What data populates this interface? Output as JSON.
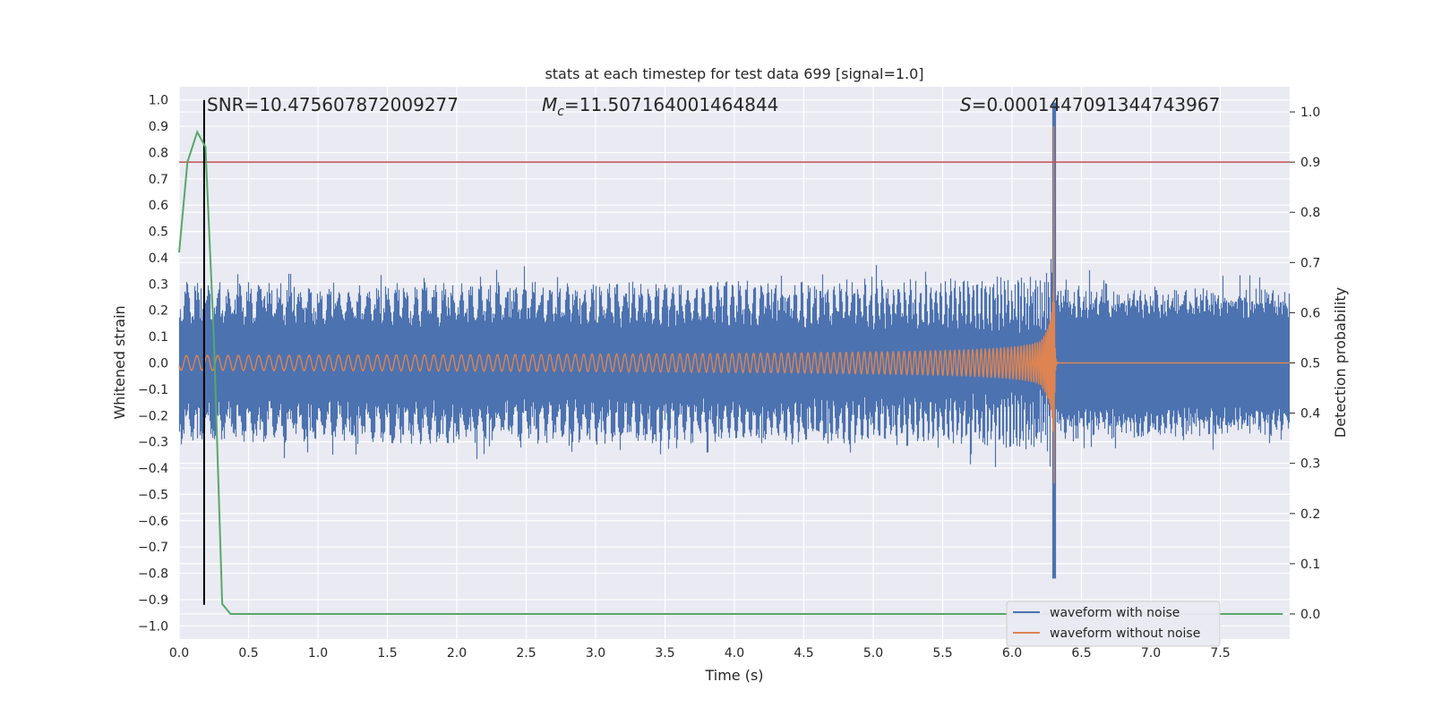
{
  "chart_data": {
    "type": "line",
    "title": "stats at each timestep for test data 699 [signal=1.0]",
    "xlabel": "Time (s)",
    "ylabel": "Whitened strain",
    "ylabel_right": "Detection probability",
    "xlim": [
      0.0,
      8.0
    ],
    "ylim": [
      -1.05,
      1.05
    ],
    "ylim_right": [
      -0.05,
      1.05
    ],
    "xticks": [
      "0.0",
      "0.5",
      "1.0",
      "1.5",
      "2.0",
      "2.5",
      "3.0",
      "3.5",
      "4.0",
      "4.5",
      "5.0",
      "5.5",
      "6.0",
      "6.5",
      "7.0",
      "7.5"
    ],
    "yticks": [
      "1.0",
      "0.9",
      "0.8",
      "0.7",
      "0.6",
      "0.5",
      "0.4",
      "0.3",
      "0.2",
      "0.1",
      "0.0",
      "−0.1",
      "−0.2",
      "−0.3",
      "−0.4",
      "−0.5",
      "−0.6",
      "−0.7",
      "−0.8",
      "−0.9",
      "−1.0"
    ],
    "yticks_right": [
      "1.0",
      "0.9",
      "0.8",
      "0.7",
      "0.6",
      "0.5",
      "0.4",
      "0.3",
      "0.2",
      "0.1",
      "0.0"
    ],
    "grid": true,
    "legend_position": "bottom-right",
    "annotations": {
      "snr_label": "SNR=",
      "snr_value": "10.475607872009277",
      "mc_symbol": "M",
      "mc_sub": "c",
      "mc_value": "=11.507164001464844",
      "s_symbol": "S",
      "s_value": "=0.0001447091344743967"
    },
    "series": [
      {
        "name": "waveform with noise",
        "color": "#4c72b0",
        "description": "noise band ~±0.28 around 0.0 with chirp spike reaching ~1.0 near t=6.3"
      },
      {
        "name": "waveform without noise",
        "color": "#dd8452",
        "description": "chirp oscillation growing in amplitude, merger at t≈6.3, ringdown to 0"
      },
      {
        "name": "detection probability",
        "color": "#55a868",
        "axis": "right",
        "x": [
          0.0,
          0.06,
          0.13,
          0.19,
          0.25,
          0.31,
          0.37,
          0.5,
          1.0,
          2.0,
          3.0,
          4.0,
          5.0,
          6.0,
          7.0,
          7.95
        ],
        "y": [
          0.72,
          0.9,
          0.96,
          0.93,
          0.55,
          0.02,
          0.0,
          0.0,
          0.0,
          0.0,
          0.0,
          0.0,
          0.0,
          0.0,
          0.0,
          0.0
        ]
      }
    ],
    "threshold": {
      "value": 0.9,
      "axis": "right",
      "color": "#c44e52"
    },
    "marker_time": {
      "x": 0.18,
      "color": "#000000"
    },
    "merger_time": 6.3
  },
  "colors": {
    "plot_bg": "#eaeaf2",
    "grid": "#ffffff",
    "noisy": "#4c72b0",
    "clean": "#dd8452",
    "prob": "#55a868",
    "threshold": "#c44e52"
  }
}
